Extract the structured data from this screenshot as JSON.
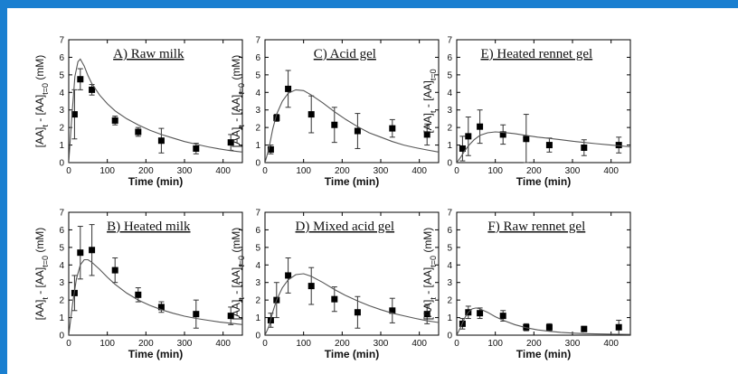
{
  "frame": {
    "border_color": "#1a7fd0"
  },
  "chart_data": [
    {
      "type": "scatter",
      "title": "A) Raw milk",
      "xlabel": "Time (min)",
      "ylabel": {
        "p1": "[AA]",
        "s1": "t",
        "p2": " - [AA]",
        "s2": "t=0",
        "p3": " (mM)"
      },
      "xlim": [
        0,
        450
      ],
      "ylim": [
        0,
        7
      ],
      "xticks": [
        0,
        100,
        200,
        300,
        400
      ],
      "yticks": [
        0,
        1,
        2,
        3,
        4,
        5,
        6,
        7
      ],
      "grid": false,
      "series": [
        {
          "kind": "points",
          "x": [
            15,
            30,
            60,
            120,
            180,
            240,
            330,
            420
          ],
          "y": [
            2.75,
            4.75,
            4.15,
            2.4,
            1.75,
            1.25,
            0.8,
            1.15
          ],
          "err": [
            1.4,
            0.6,
            0.3,
            0.25,
            0.25,
            0.7,
            0.3,
            0.45
          ]
        },
        {
          "kind": "fit",
          "x": [
            0,
            8,
            16,
            24,
            30,
            40,
            50,
            60,
            80,
            100,
            120,
            150,
            180,
            210,
            240,
            270,
            300,
            330,
            360,
            390,
            420,
            450
          ],
          "y": [
            0,
            2.6,
            4.9,
            5.75,
            5.9,
            5.5,
            4.95,
            4.5,
            3.85,
            3.35,
            2.95,
            2.5,
            2.15,
            1.85,
            1.6,
            1.4,
            1.2,
            1.05,
            0.9,
            0.78,
            0.68,
            0.6
          ]
        }
      ]
    },
    {
      "type": "scatter",
      "title": "C) Acid gel",
      "xlabel": "Time (min)",
      "ylabel": {
        "p1": "[AA]",
        "s1": "t",
        "p2": " - [AA]",
        "s2": "t=0",
        "p3": " (mM)"
      },
      "xlim": [
        0,
        450
      ],
      "ylim": [
        0,
        7
      ],
      "xticks": [
        0,
        100,
        200,
        300,
        400
      ],
      "yticks": [
        0,
        1,
        2,
        3,
        4,
        5,
        6,
        7
      ],
      "grid": false,
      "series": [
        {
          "kind": "points",
          "x": [
            15,
            30,
            60,
            120,
            180,
            240,
            330,
            420
          ],
          "y": [
            0.75,
            2.55,
            4.2,
            2.75,
            2.15,
            1.8,
            1.95,
            1.6
          ],
          "err": [
            0.25,
            0.2,
            1.05,
            1.05,
            1.0,
            1.0,
            0.5,
            0.6
          ]
        },
        {
          "kind": "fit",
          "x": [
            0,
            10,
            20,
            30,
            45,
            60,
            80,
            100,
            120,
            150,
            180,
            210,
            240,
            270,
            300,
            330,
            360,
            390,
            420,
            450
          ],
          "y": [
            0,
            0.8,
            1.9,
            2.75,
            3.5,
            3.95,
            4.15,
            4.1,
            3.85,
            3.4,
            2.9,
            2.45,
            2.05,
            1.7,
            1.45,
            1.2,
            1.0,
            0.85,
            0.72,
            0.6
          ]
        }
      ]
    },
    {
      "type": "scatter",
      "title": "E) Heated rennet gel",
      "xlabel": "Time (min)",
      "ylabel": {
        "p1": "[AA]",
        "s1": "t",
        "p2": " - [AA]",
        "s2": "t=0",
        "p3": ""
      },
      "xlim": [
        0,
        450
      ],
      "ylim": [
        0,
        7
      ],
      "xticks": [
        0,
        100,
        200,
        300,
        400
      ],
      "yticks": [
        0,
        1,
        2,
        3,
        4,
        5,
        6,
        7
      ],
      "grid": false,
      "series": [
        {
          "kind": "points",
          "x": [
            15,
            30,
            60,
            120,
            180,
            240,
            330,
            420
          ],
          "y": [
            0.8,
            1.5,
            2.05,
            1.6,
            1.35,
            1.0,
            0.85,
            1.0
          ],
          "err": [
            0.7,
            1.1,
            0.95,
            0.55,
            1.4,
            0.4,
            0.45,
            0.45
          ]
        },
        {
          "kind": "fit",
          "x": [
            0,
            10,
            20,
            30,
            45,
            60,
            80,
            100,
            120,
            150,
            180,
            210,
            240,
            270,
            300,
            330,
            360,
            390,
            420,
            450
          ],
          "y": [
            0,
            0.3,
            0.65,
            0.95,
            1.3,
            1.55,
            1.7,
            1.75,
            1.72,
            1.65,
            1.55,
            1.45,
            1.38,
            1.3,
            1.22,
            1.15,
            1.08,
            1.02,
            0.96,
            0.9
          ]
        }
      ]
    },
    {
      "type": "scatter",
      "title": "B) Heated milk",
      "xlabel": "Time (min)",
      "ylabel": {
        "p1": "[AA]",
        "s1": "t",
        "p2": " - [AA]",
        "s2": "t=0",
        "p3": " (mM)"
      },
      "xlim": [
        0,
        450
      ],
      "ylim": [
        0,
        7
      ],
      "xticks": [
        0,
        100,
        200,
        300,
        400
      ],
      "yticks": [
        0,
        1,
        2,
        3,
        4,
        5,
        6,
        7
      ],
      "grid": false,
      "series": [
        {
          "kind": "points",
          "x": [
            15,
            30,
            60,
            120,
            180,
            240,
            330,
            420
          ],
          "y": [
            2.4,
            4.7,
            4.85,
            3.7,
            2.3,
            1.6,
            1.2,
            1.1
          ],
          "err": [
            1.0,
            1.5,
            1.45,
            0.7,
            0.4,
            0.3,
            0.8,
            0.5
          ]
        },
        {
          "kind": "fit",
          "x": [
            0,
            10,
            20,
            30,
            40,
            50,
            60,
            80,
            100,
            120,
            150,
            180,
            210,
            240,
            270,
            300,
            330,
            360,
            390,
            420,
            450
          ],
          "y": [
            0,
            1.8,
            3.2,
            4.0,
            4.3,
            4.3,
            4.15,
            3.75,
            3.3,
            2.9,
            2.4,
            2.0,
            1.7,
            1.45,
            1.25,
            1.08,
            0.95,
            0.85,
            0.75,
            0.68,
            0.6
          ]
        }
      ]
    },
    {
      "type": "scatter",
      "title": "D) Mixed acid gel",
      "xlabel": "Time (min)",
      "ylabel": {
        "p1": "[AA]",
        "s1": "t",
        "p2": " - [AA]",
        "s2": "t=0",
        "p3": " (mM)"
      },
      "xlim": [
        0,
        450
      ],
      "ylim": [
        0,
        7
      ],
      "xticks": [
        0,
        100,
        200,
        300,
        400
      ],
      "yticks": [
        0,
        1,
        2,
        3,
        4,
        5,
        6,
        7
      ],
      "grid": false,
      "series": [
        {
          "kind": "points",
          "x": [
            15,
            30,
            60,
            120,
            180,
            240,
            330,
            420
          ],
          "y": [
            0.85,
            2.0,
            3.4,
            2.8,
            2.05,
            1.3,
            1.4,
            1.2
          ],
          "err": [
            0.4,
            1.0,
            1.0,
            1.05,
            0.7,
            0.9,
            0.7,
            0.55
          ]
        },
        {
          "kind": "fit",
          "x": [
            0,
            10,
            20,
            30,
            45,
            60,
            80,
            100,
            120,
            150,
            180,
            210,
            240,
            270,
            300,
            330,
            360,
            390,
            420,
            450
          ],
          "y": [
            0,
            0.5,
            1.3,
            2.0,
            2.7,
            3.15,
            3.45,
            3.5,
            3.35,
            3.0,
            2.6,
            2.25,
            1.95,
            1.68,
            1.45,
            1.25,
            1.1,
            0.95,
            0.82,
            0.72
          ]
        }
      ]
    },
    {
      "type": "scatter",
      "title": "F) Raw rennet gel",
      "xlabel": "Time (min)",
      "ylabel": {
        "p1": "[AA]",
        "s1": "t",
        "p2": " - [AA]",
        "s2": "t=0",
        "p3": " (mM)"
      },
      "xlim": [
        0,
        450
      ],
      "ylim": [
        0,
        7
      ],
      "xticks": [
        0,
        100,
        200,
        300,
        400
      ],
      "yticks": [
        0,
        1,
        2,
        3,
        4,
        5,
        6,
        7
      ],
      "grid": false,
      "series": [
        {
          "kind": "points",
          "x": [
            15,
            30,
            60,
            120,
            180,
            240,
            330,
            420
          ],
          "y": [
            0.65,
            1.3,
            1.25,
            1.1,
            0.45,
            0.45,
            0.35,
            0.45
          ],
          "err": [
            0.3,
            0.35,
            0.3,
            0.3,
            0.2,
            0.2,
            0.15,
            0.4
          ]
        },
        {
          "kind": "fit",
          "x": [
            0,
            10,
            20,
            30,
            40,
            50,
            60,
            80,
            100,
            120,
            150,
            180,
            210,
            240,
            270,
            300,
            330,
            360,
            390,
            420,
            450
          ],
          "y": [
            0,
            0.45,
            0.95,
            1.3,
            1.5,
            1.55,
            1.5,
            1.3,
            1.05,
            0.85,
            0.6,
            0.42,
            0.3,
            0.22,
            0.16,
            0.12,
            0.09,
            0.07,
            0.06,
            0.05,
            0.04
          ]
        }
      ]
    }
  ]
}
